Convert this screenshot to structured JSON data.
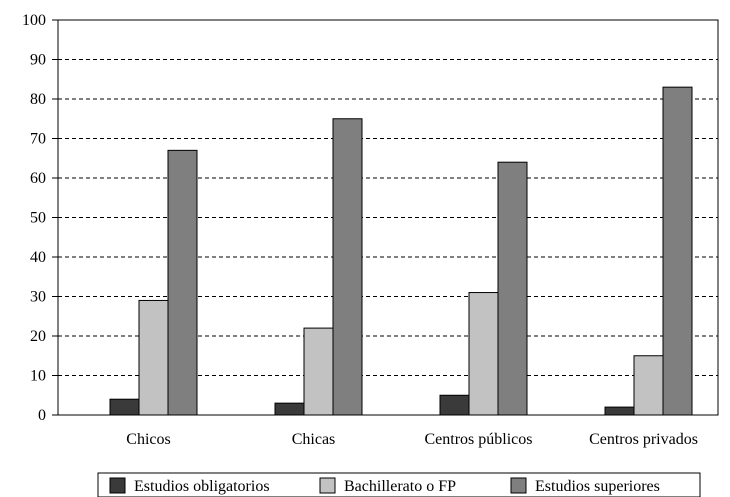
{
  "chart_data": {
    "type": "bar",
    "categories": [
      "Chicos",
      "Chicas",
      "Centros públicos",
      "Centros privados"
    ],
    "series": [
      {
        "name": "Estudios obligatorios",
        "values": [
          4,
          3,
          5,
          2
        ],
        "color": "#3a3a3a"
      },
      {
        "name": "Bachillerato o FP",
        "values": [
          29,
          22,
          31,
          15
        ],
        "color": "#c2c2c2"
      },
      {
        "name": "Estudios superiores",
        "values": [
          67,
          75,
          64,
          83
        ],
        "color": "#7f7f7f"
      }
    ],
    "ylim": [
      0,
      100
    ],
    "yticks": [
      0,
      10,
      20,
      30,
      40,
      50,
      60,
      70,
      80,
      90,
      100
    ],
    "grid": "dashed horizontal",
    "legend_position": "bottom"
  }
}
